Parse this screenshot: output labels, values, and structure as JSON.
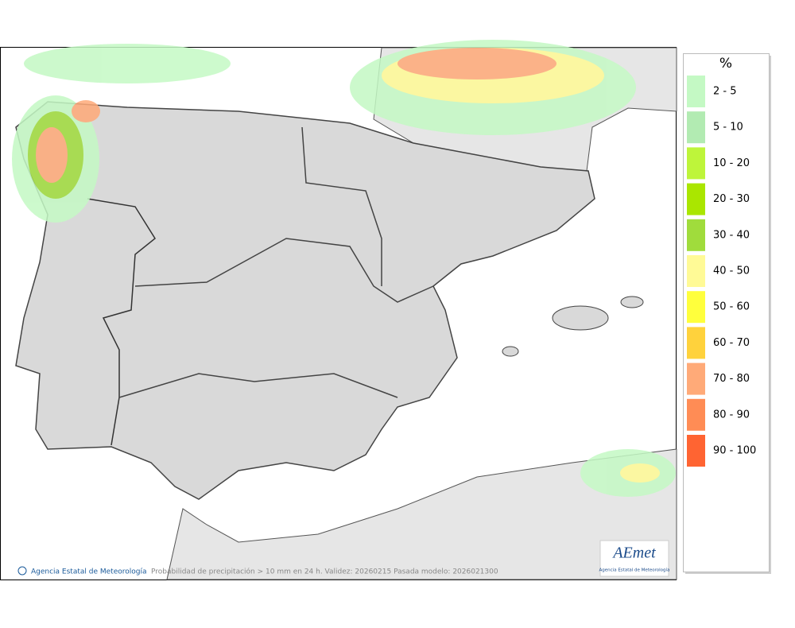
{
  "legend": {
    "title": "%",
    "items": [
      {
        "label": "2 - 5",
        "color": "#c4f9c4"
      },
      {
        "label": "5 - 10",
        "color": "#b2ebb2"
      },
      {
        "label": "10 - 20",
        "color": "#bef53a"
      },
      {
        "label": "20 - 30",
        "color": "#aae600"
      },
      {
        "label": "30 - 40",
        "color": "#a0dc3c"
      },
      {
        "label": "40 - 50",
        "color": "#fffa96"
      },
      {
        "label": "50 - 60",
        "color": "#ffff3c"
      },
      {
        "label": "60 - 70",
        "color": "#ffd23c"
      },
      {
        "label": "70 - 80",
        "color": "#ffaa78"
      },
      {
        "label": "80 - 90",
        "color": "#ff8c55"
      },
      {
        "label": "90 - 100",
        "color": "#ff6432"
      }
    ]
  },
  "footer": {
    "credit": "Agencia Estatal de Meteorología",
    "caption": "Probabilidad de precipitación > 10 mm en 24 h. Validez: 20260215 Pasada modelo: 2026021300"
  },
  "logo": {
    "text": "AEmet",
    "subtitle": "Agencia Estatal de Meteorología"
  }
}
